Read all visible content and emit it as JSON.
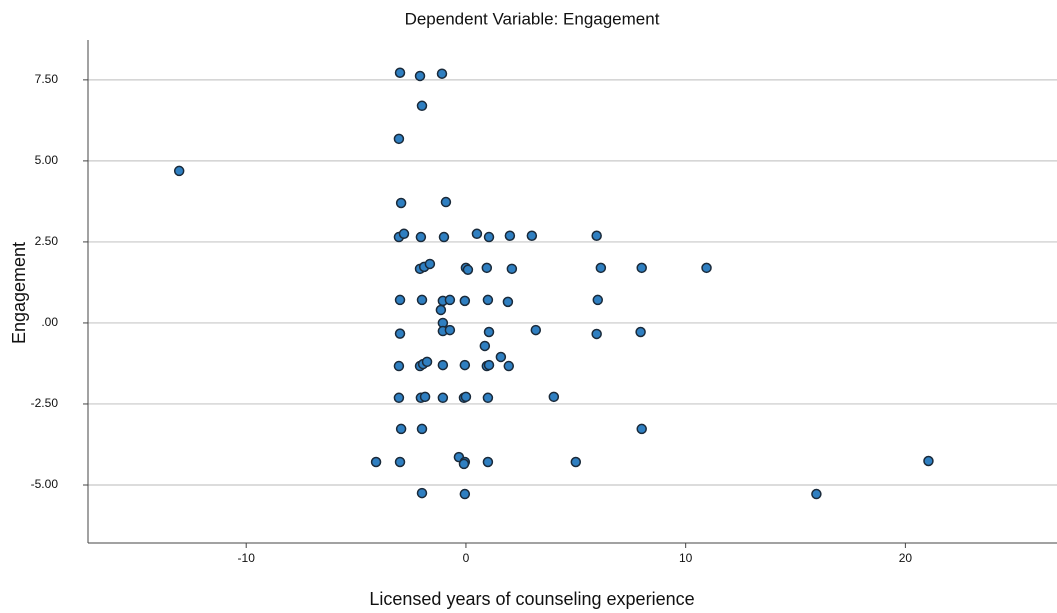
{
  "chart_data": {
    "type": "scatter",
    "title": "Dependent Variable: Engagement",
    "x_label": "Licensed years of counseling experience",
    "y_label": "Engagement",
    "color": "#2f7fc1",
    "edge_color": "#1a2a3a",
    "grid": true,
    "xlim": [
      -17.2,
      26.9
    ],
    "ylim": [
      -6.79,
      8.73
    ],
    "xticks": [
      -10,
      0,
      10,
      20
    ],
    "yticks": [
      {
        "value": 7.5,
        "label": "7.50"
      },
      {
        "value": 5,
        "label": "5.00"
      },
      {
        "value": 2.5,
        "label": "2.50"
      },
      {
        "value": 0,
        "label": ".00"
      },
      {
        "value": -2.5,
        "label": "-2.50"
      },
      {
        "value": -5,
        "label": "-5.00"
      }
    ],
    "x": [
      -3.0,
      -2.09,
      -1.09,
      -2.0,
      -3.05,
      -13.05,
      -2.95,
      -0.91,
      -3.05,
      -2.82,
      -2.05,
      -1.0,
      0.5,
      1.05,
      2.0,
      3.0,
      5.95,
      -2.09,
      -1.9,
      -1.64,
      0,
      0.09,
      0.95,
      2.09,
      6.14,
      8.0,
      10.95,
      -3.0,
      -2.0,
      -1.05,
      -0.73,
      -0.05,
      1.0,
      1.91,
      6.0,
      -1.14,
      -1.05,
      -1.05,
      -0.73,
      -3.0,
      1.05,
      3.18,
      5.95,
      7.95,
      0.86,
      1.59,
      -3.05,
      -2.09,
      -1.95,
      -1.77,
      -1.05,
      -0.05,
      0.95,
      1.05,
      1.95,
      -3.05,
      -2.05,
      -1.86,
      -1.05,
      -0.09,
      0,
      1.0,
      4.0,
      -2.95,
      -2.0,
      8.0,
      -4.09,
      -3.0,
      -0.32,
      -0.05,
      -0.09,
      1.0,
      5.0,
      21.05,
      -2.0,
      -0.05,
      15.95
    ],
    "y": [
      7.72,
      7.62,
      7.69,
      6.7,
      5.68,
      4.69,
      3.7,
      3.73,
      2.65,
      2.75,
      2.65,
      2.65,
      2.75,
      2.65,
      2.69,
      2.69,
      2.69,
      1.67,
      1.73,
      1.82,
      1.7,
      1.64,
      1.7,
      1.67,
      1.7,
      1.7,
      1.7,
      0.71,
      0.71,
      0.68,
      0.71,
      0.68,
      0.71,
      0.65,
      0.71,
      0.4,
      0,
      -0.25,
      -0.22,
      -0.33,
      -0.28,
      -0.22,
      -0.34,
      -0.28,
      -0.71,
      -1.05,
      -1.33,
      -1.33,
      -1.27,
      -1.2,
      -1.3,
      -1.3,
      -1.33,
      -1.3,
      -1.33,
      -2.31,
      -2.31,
      -2.28,
      -2.31,
      -2.31,
      -2.28,
      -2.31,
      -2.28,
      -3.27,
      -3.27,
      -3.27,
      -4.29,
      -4.29,
      -4.14,
      -4.29,
      -4.35,
      -4.29,
      -4.29,
      -4.26,
      -5.25,
      -5.28,
      -5.28
    ]
  }
}
